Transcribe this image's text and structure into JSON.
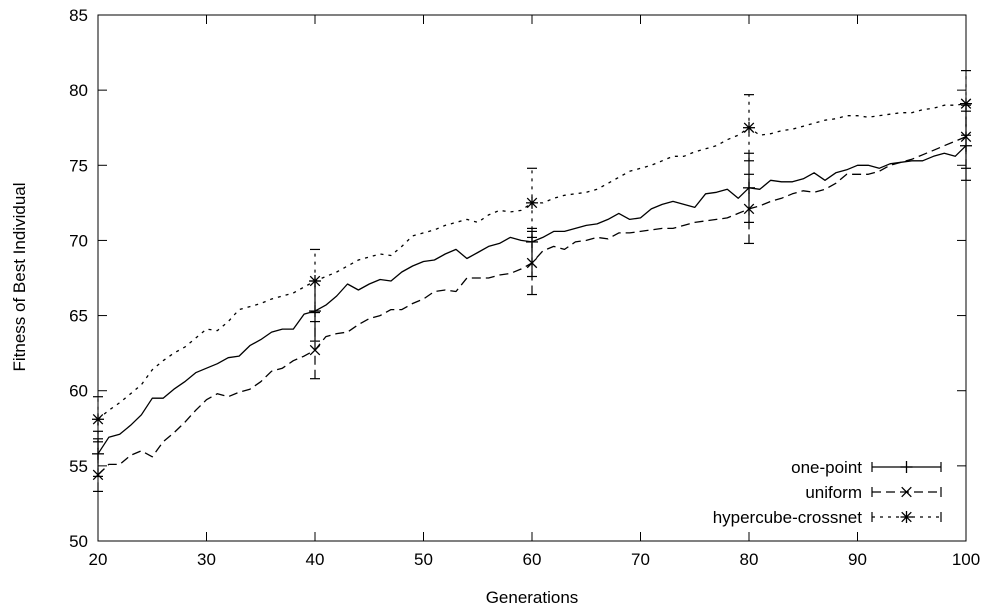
{
  "chart_data": {
    "type": "line",
    "title": "",
    "xlabel": "Generations",
    "ylabel": "Fitness of Best Individual",
    "xlim": [
      20,
      100
    ],
    "ylim": [
      50,
      85
    ],
    "xticks": [
      20,
      30,
      40,
      50,
      60,
      70,
      80,
      90,
      100
    ],
    "yticks": [
      50,
      55,
      60,
      65,
      70,
      75,
      80,
      85
    ],
    "xtick_labels": [
      "20",
      "30",
      "40",
      "50",
      "60",
      "70",
      "80",
      "90",
      "100"
    ],
    "ytick_labels": [
      "50",
      "55",
      "60",
      "65",
      "70",
      "75",
      "80",
      "85"
    ],
    "legend_position": "bottom-right",
    "grid": false,
    "series": [
      {
        "name": "one-point",
        "line_style": "solid",
        "marker": "plus",
        "x": [
          20,
          21,
          22,
          23,
          24,
          25,
          26,
          27,
          28,
          29,
          30,
          31,
          32,
          33,
          34,
          35,
          36,
          37,
          38,
          39,
          40,
          41,
          42,
          43,
          44,
          45,
          46,
          47,
          48,
          49,
          50,
          51,
          52,
          53,
          54,
          55,
          56,
          57,
          58,
          59,
          60,
          61,
          62,
          63,
          64,
          65,
          66,
          67,
          68,
          69,
          70,
          71,
          72,
          73,
          74,
          75,
          76,
          77,
          78,
          79,
          80,
          81,
          82,
          83,
          84,
          85,
          86,
          87,
          88,
          89,
          90,
          91,
          92,
          93,
          94,
          95,
          96,
          97,
          98,
          99,
          100
        ],
        "y": [
          55.8,
          56.9,
          57.1,
          57.7,
          58.4,
          59.5,
          59.5,
          60.1,
          60.6,
          61.2,
          61.5,
          61.8,
          62.2,
          62.3,
          63.0,
          63.4,
          63.9,
          64.1,
          64.1,
          65.1,
          65.3,
          65.7,
          66.3,
          67.1,
          66.7,
          67.1,
          67.4,
          67.3,
          67.9,
          68.3,
          68.6,
          68.7,
          69.1,
          69.4,
          68.8,
          69.2,
          69.6,
          69.8,
          70.2,
          70.0,
          69.9,
          70.2,
          70.6,
          70.6,
          70.8,
          71.0,
          71.1,
          71.4,
          71.8,
          71.4,
          71.5,
          72.1,
          72.4,
          72.6,
          72.4,
          72.2,
          73.1,
          73.2,
          73.4,
          72.8,
          73.5,
          73.4,
          74.0,
          73.9,
          73.9,
          74.1,
          74.5,
          74.0,
          74.5,
          74.7,
          75.0,
          75.0,
          74.8,
          75.1,
          75.2,
          75.3,
          75.3,
          75.6,
          75.8,
          75.6,
          76.3
        ],
        "error_bars": [
          {
            "x": 20,
            "y": 55.8,
            "low": 54.3,
            "high": 57.3
          },
          {
            "x": 40,
            "y": 65.3,
            "low": 63.3,
            "high": 67.3
          },
          {
            "x": 60,
            "y": 69.9,
            "low": 67.6,
            "high": 70.8
          },
          {
            "x": 80,
            "y": 73.5,
            "low": 71.2,
            "high": 75.8
          },
          {
            "x": 100,
            "y": 76.3,
            "low": 74.0,
            "high": 78.6
          }
        ]
      },
      {
        "name": "uniform",
        "line_style": "dashed",
        "marker": "cross",
        "x": [
          20,
          21,
          22,
          23,
          24,
          25,
          26,
          27,
          28,
          29,
          30,
          31,
          32,
          33,
          34,
          35,
          36,
          37,
          38,
          39,
          40,
          41,
          42,
          43,
          44,
          45,
          46,
          47,
          48,
          49,
          50,
          51,
          52,
          53,
          54,
          55,
          56,
          57,
          58,
          59,
          60,
          61,
          62,
          63,
          64,
          65,
          66,
          67,
          68,
          69,
          70,
          71,
          72,
          73,
          74,
          75,
          76,
          77,
          78,
          79,
          80,
          81,
          82,
          83,
          84,
          85,
          86,
          87,
          88,
          89,
          90,
          91,
          92,
          93,
          94,
          95,
          96,
          97,
          98,
          99,
          100
        ],
        "y": [
          54.4,
          55.1,
          55.1,
          55.7,
          56.0,
          55.6,
          56.6,
          57.2,
          57.9,
          58.7,
          59.4,
          59.8,
          59.6,
          59.9,
          60.1,
          60.6,
          61.3,
          61.5,
          62.0,
          62.3,
          62.7,
          63.6,
          63.8,
          63.9,
          64.4,
          64.8,
          65.0,
          65.4,
          65.4,
          65.8,
          66.1,
          66.6,
          66.7,
          66.6,
          67.5,
          67.5,
          67.5,
          67.7,
          67.8,
          68.1,
          68.5,
          69.3,
          69.6,
          69.4,
          69.9,
          70.0,
          70.2,
          70.1,
          70.5,
          70.5,
          70.6,
          70.7,
          70.8,
          70.8,
          71.0,
          71.2,
          71.3,
          71.4,
          71.5,
          71.8,
          72.1,
          72.3,
          72.6,
          72.8,
          73.1,
          73.3,
          73.2,
          73.4,
          73.8,
          74.4,
          74.4,
          74.4,
          74.6,
          75.0,
          75.2,
          75.4,
          75.7,
          76.0,
          76.3,
          76.6,
          76.9
        ],
        "error_bars": [
          {
            "x": 20,
            "y": 54.4,
            "low": 53.3,
            "high": 56.8
          },
          {
            "x": 40,
            "y": 62.7,
            "low": 60.8,
            "high": 64.6
          },
          {
            "x": 60,
            "y": 68.5,
            "low": 66.4,
            "high": 70.6
          },
          {
            "x": 80,
            "y": 72.1,
            "low": 69.8,
            "high": 74.4
          },
          {
            "x": 100,
            "y": 76.9,
            "low": 74.8,
            "high": 79.0
          }
        ]
      },
      {
        "name": "hypercube-crossnet",
        "line_style": "dotted",
        "marker": "star",
        "x": [
          20,
          21,
          22,
          23,
          24,
          25,
          26,
          27,
          28,
          29,
          30,
          31,
          32,
          33,
          34,
          35,
          36,
          37,
          38,
          39,
          40,
          41,
          42,
          43,
          44,
          45,
          46,
          47,
          48,
          49,
          50,
          51,
          52,
          53,
          54,
          55,
          56,
          57,
          58,
          59,
          60,
          61,
          62,
          63,
          64,
          65,
          66,
          67,
          68,
          69,
          70,
          71,
          72,
          73,
          74,
          75,
          76,
          77,
          78,
          79,
          80,
          81,
          82,
          83,
          84,
          85,
          86,
          87,
          88,
          89,
          90,
          91,
          92,
          93,
          94,
          95,
          96,
          97,
          98,
          99,
          100
        ],
        "y": [
          58.1,
          58.7,
          59.2,
          59.8,
          60.4,
          61.4,
          62.0,
          62.5,
          62.9,
          63.5,
          64.1,
          64.0,
          64.6,
          65.4,
          65.6,
          65.8,
          66.1,
          66.3,
          66.5,
          66.9,
          67.3,
          67.6,
          67.9,
          68.3,
          68.7,
          68.9,
          69.1,
          69.0,
          69.6,
          70.3,
          70.5,
          70.7,
          71.0,
          71.2,
          71.4,
          71.2,
          71.7,
          72.0,
          71.9,
          72.0,
          72.5,
          72.5,
          72.8,
          73.0,
          73.1,
          73.2,
          73.4,
          73.8,
          74.2,
          74.6,
          74.8,
          75.0,
          75.3,
          75.6,
          75.6,
          75.9,
          76.1,
          76.3,
          76.7,
          77.0,
          77.5,
          77.0,
          77.1,
          77.3,
          77.4,
          77.6,
          77.8,
          78.0,
          78.1,
          78.3,
          78.3,
          78.2,
          78.3,
          78.4,
          78.5,
          78.5,
          78.7,
          78.8,
          79.0,
          79.0,
          79.1
        ],
        "error_bars": [
          {
            "x": 20,
            "y": 58.1,
            "low": 56.6,
            "high": 59.6
          },
          {
            "x": 40,
            "y": 67.3,
            "low": 65.2,
            "high": 69.4
          },
          {
            "x": 60,
            "y": 72.5,
            "low": 70.2,
            "high": 74.8
          },
          {
            "x": 80,
            "y": 77.5,
            "low": 75.3,
            "high": 79.7
          },
          {
            "x": 100,
            "y": 79.1,
            "low": 77.0,
            "high": 81.3
          }
        ]
      }
    ]
  }
}
